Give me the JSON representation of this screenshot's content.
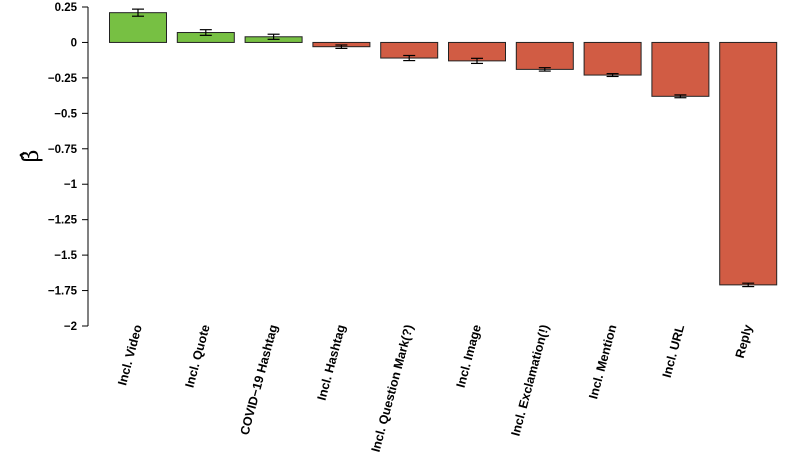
{
  "chart_data": {
    "type": "bar",
    "categories": [
      "Incl. Video",
      "Incl. Quote",
      "COVID−19 Hashtag",
      "Incl. Hashtag",
      "Incl. Question Mark(?)",
      "Incl. Image",
      "Incl. Exclamation(!)",
      "Incl. Mention",
      "Incl. URL",
      "Reply"
    ],
    "values": [
      0.21,
      0.07,
      0.04,
      -0.03,
      -0.11,
      -0.13,
      -0.19,
      -0.23,
      -0.38,
      -1.71
    ],
    "errors": [
      0.025,
      0.02,
      0.018,
      0.012,
      0.018,
      0.018,
      0.012,
      0.01,
      0.01,
      0.012
    ],
    "ylabel": "β̂",
    "ylim": [
      -2,
      0.25
    ],
    "yticks": [
      0.25,
      0,
      -0.25,
      -0.5,
      -0.75,
      -1,
      -1.25,
      -1.5,
      -1.75,
      -2
    ],
    "ytick_labels": [
      "0.25",
      "0",
      "−0.25",
      "−0.5",
      "−0.75",
      "−1",
      "−1.25",
      "−1.5",
      "−1.75",
      "−2"
    ],
    "colors": {
      "positive": "#77c043",
      "negative": "#d15c44",
      "outline": "#222222"
    },
    "grid": false,
    "legend": "none"
  }
}
